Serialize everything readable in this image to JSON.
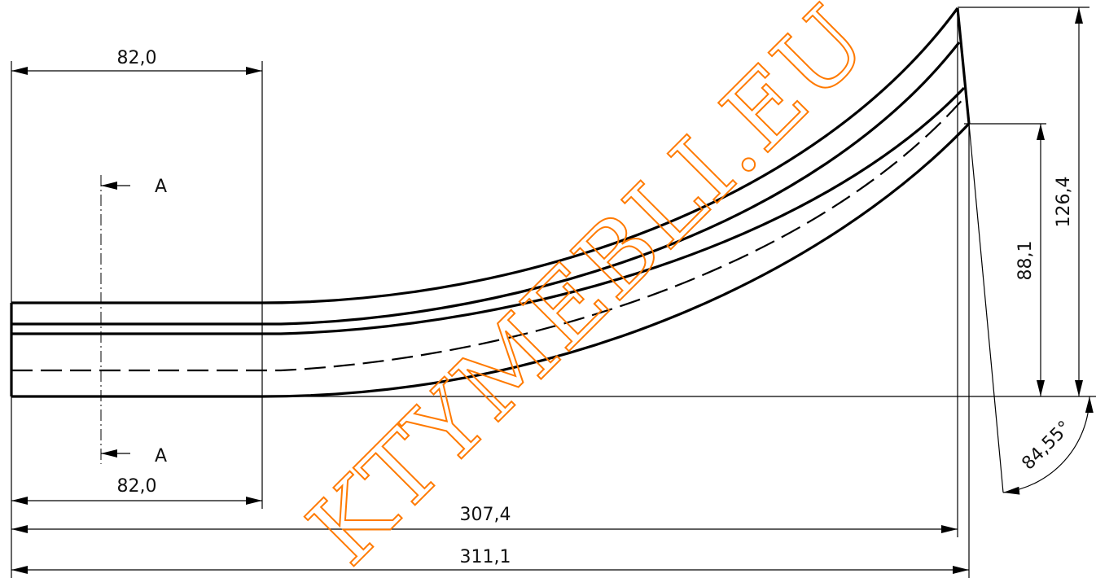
{
  "dimensions": {
    "top_width": "82,0",
    "bottom_width": "82,0",
    "length_inner": "307,4",
    "length_outer": "311,1",
    "height_total": "126,4",
    "height_partial": "88,1",
    "angle": "84,55°"
  },
  "section": {
    "top_label": "A",
    "bottom_label": "A"
  },
  "watermark": {
    "text": "KTYMEBLI.EU",
    "color": "#ff7a00"
  }
}
